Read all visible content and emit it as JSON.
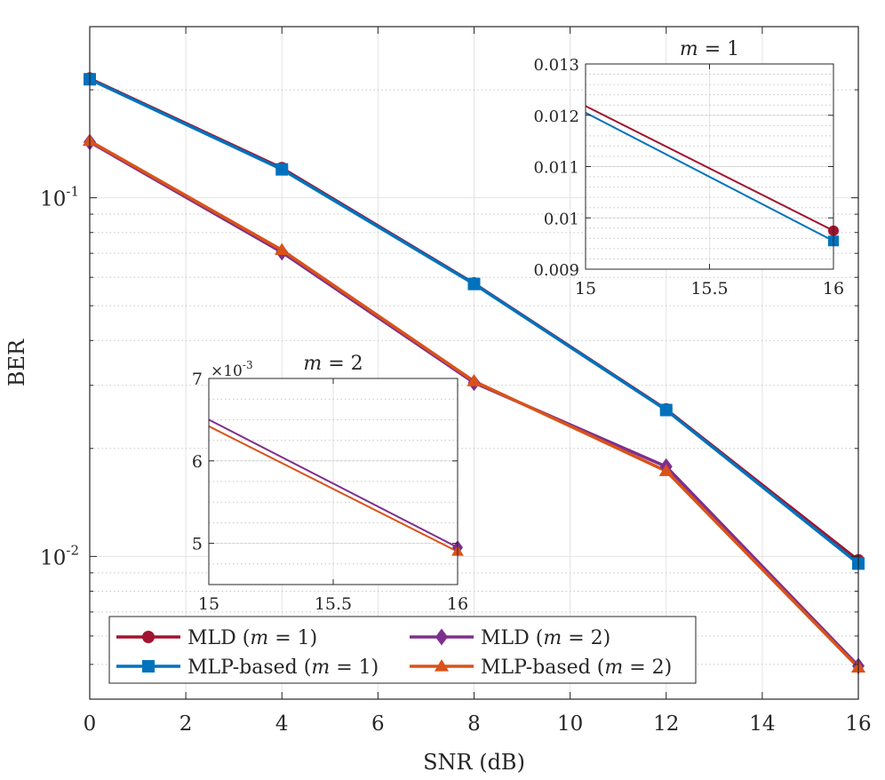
{
  "chart_data": [
    {
      "id": "main",
      "type": "line",
      "title": "",
      "xlabel": "SNR (dB)",
      "ylabel": "BER",
      "xlim": [
        0,
        16
      ],
      "ylim": [
        0.004,
        0.3
      ],
      "yscale": "log",
      "grid": true,
      "x_ticks": [
        0,
        2,
        4,
        6,
        8,
        10,
        12,
        14,
        16
      ],
      "y_ticks": [
        {
          "value": 0.1,
          "base": "10",
          "exp": "-1"
        },
        {
          "value": 0.01,
          "base": "10",
          "exp": "-2"
        }
      ],
      "legend_position": "bottom-left",
      "series": [
        {
          "name": "MLD",
          "m_label": "(m = 1)",
          "color": "#A2142F",
          "marker": "circle",
          "x": [
            0,
            4,
            8,
            12,
            16
          ],
          "y": [
            0.215,
            0.121,
            0.0577,
            0.0257,
            0.00975
          ]
        },
        {
          "name": "MLP-based",
          "m_label": "(m = 1)",
          "color": "#0072BD",
          "marker": "square",
          "x": [
            0,
            4,
            8,
            12,
            16
          ],
          "y": [
            0.214,
            0.12,
            0.0575,
            0.0256,
            0.00955
          ]
        },
        {
          "name": "MLD",
          "m_label": "(m = 2)",
          "color": "#7E2F8E",
          "marker": "diamond",
          "x": [
            0,
            4,
            8,
            12,
            16
          ],
          "y": [
            0.143,
            0.0705,
            0.0305,
            0.0178,
            0.00495
          ]
        },
        {
          "name": "MLP-based",
          "m_label": "(m = 2)",
          "color": "#D95319",
          "marker": "triangle",
          "x": [
            0,
            4,
            8,
            12,
            16
          ],
          "y": [
            0.144,
            0.0715,
            0.0308,
            0.0173,
            0.0049
          ]
        }
      ]
    },
    {
      "id": "inset_m1",
      "type": "line",
      "title": "m = 1",
      "xlim": [
        15,
        16
      ],
      "ylim": [
        0.009,
        0.013
      ],
      "x_ticks": [
        "15",
        "15.5",
        "16"
      ],
      "y_ticks": [
        "0.009",
        "0.01",
        "0.011",
        "0.012",
        "0.013"
      ],
      "grid": true,
      "series": [
        {
          "name": "MLD (m = 1)",
          "color": "#A2142F",
          "marker": "circle",
          "x": [
            15,
            16
          ],
          "y": [
            0.01218,
            0.00975
          ]
        },
        {
          "name": "MLP-based (m = 1)",
          "color": "#0072BD",
          "marker": "square",
          "x": [
            15,
            16
          ],
          "y": [
            0.01205,
            0.00955
          ]
        }
      ]
    },
    {
      "id": "inset_m2",
      "type": "line",
      "title": "m = 2",
      "multiplier": "×10",
      "multiplier_exp": "-3",
      "xlim": [
        15,
        16
      ],
      "ylim": [
        4.5,
        7
      ],
      "x_ticks": [
        "15",
        "15.5",
        "16"
      ],
      "y_ticks": [
        "5",
        "6",
        "7"
      ],
      "grid": true,
      "series": [
        {
          "name": "MLD (m = 2)",
          "color": "#7E2F8E",
          "marker": "diamond",
          "x": [
            15,
            16
          ],
          "y": [
            6.5,
            4.95
          ]
        },
        {
          "name": "MLP-based (m = 2)",
          "color": "#D95319",
          "marker": "triangle",
          "x": [
            15,
            16
          ],
          "y": [
            6.42,
            4.9
          ]
        }
      ]
    }
  ]
}
